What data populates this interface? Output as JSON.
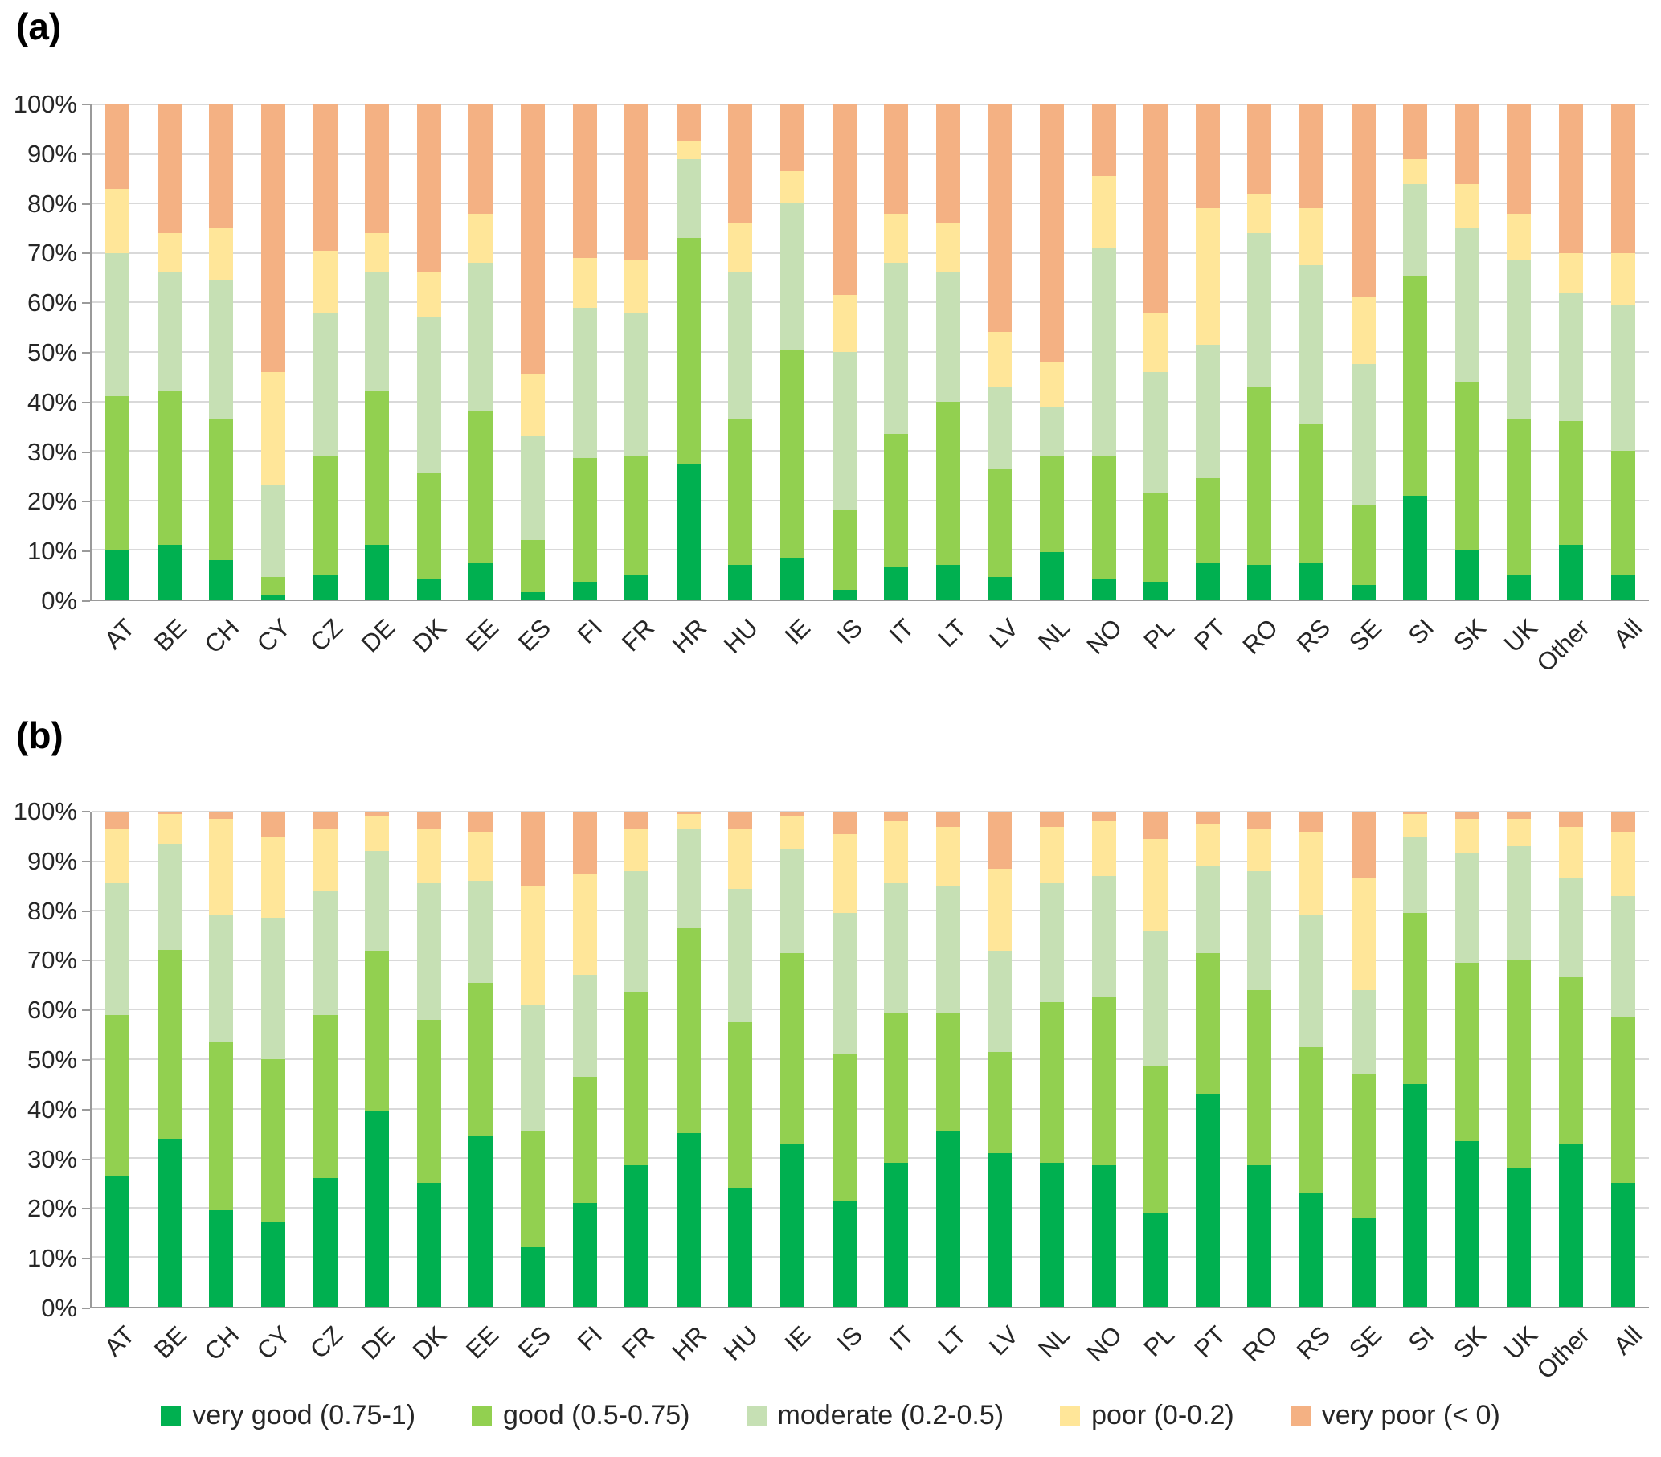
{
  "figure": {
    "panel_a_label": "(a)",
    "panel_b_label": "(b)"
  },
  "chart_data": [
    {
      "type": "bar",
      "stacked": true,
      "panel": "(a)",
      "title": "",
      "xlabel": "",
      "ylabel": "",
      "ylim": [
        0,
        100
      ],
      "grid": true,
      "yticks": [
        "0%",
        "10%",
        "20%",
        "30%",
        "40%",
        "50%",
        "60%",
        "70%",
        "80%",
        "90%",
        "100%"
      ],
      "categories": [
        "AT",
        "BE",
        "CH",
        "CY",
        "CZ",
        "DE",
        "DK",
        "EE",
        "ES",
        "FI",
        "FR",
        "HR",
        "HU",
        "IE",
        "IS",
        "IT",
        "LT",
        "LV",
        "NL",
        "NO",
        "PL",
        "PT",
        "RO",
        "RS",
        "SE",
        "SI",
        "SK",
        "UK",
        "Other",
        "All"
      ],
      "series": [
        {
          "name": "very good (0.75-1)",
          "color": "#00B050",
          "values": [
            10,
            11,
            8,
            1,
            5,
            11,
            4,
            7.5,
            1.5,
            3.5,
            5,
            27.5,
            7,
            8.5,
            2,
            6.5,
            7,
            4.5,
            9.5,
            4,
            3.5,
            7.5,
            7,
            7.5,
            3,
            21,
            10,
            5,
            11,
            5
          ]
        },
        {
          "name": "good (0.5-0.75)",
          "color": "#92D050",
          "values": [
            31,
            31,
            28.5,
            3.5,
            24,
            31,
            21.5,
            30.5,
            10.5,
            25,
            24,
            45.5,
            29.5,
            42,
            16,
            27,
            33,
            22,
            19.5,
            25,
            18,
            17,
            36,
            28,
            16,
            44.5,
            34,
            31.5,
            25,
            25
          ]
        },
        {
          "name": "moderate (0.2-0.5)",
          "color": "#C6E0B4",
          "values": [
            29,
            24,
            28,
            18.5,
            29,
            24,
            31.5,
            30,
            21,
            30.5,
            29,
            16,
            29.5,
            29.5,
            32,
            34.5,
            26,
            16.5,
            10,
            42,
            24.5,
            27,
            31,
            32,
            28.5,
            18.5,
            31,
            32,
            26,
            29.5
          ]
        },
        {
          "name": "poor (0-0.2)",
          "color": "#FFE699",
          "values": [
            13,
            8,
            10.5,
            23,
            12.5,
            8,
            9,
            10,
            12.5,
            10,
            10.5,
            3.5,
            10,
            6.5,
            11.5,
            10,
            10,
            11,
            9,
            14.5,
            12,
            27.5,
            8,
            11.5,
            13.5,
            5,
            9,
            9.5,
            8,
            10.5
          ]
        },
        {
          "name": "very poor (< 0)",
          "color": "#F4B183",
          "values": [
            17,
            26,
            25,
            54,
            29.5,
            26,
            34,
            22,
            54.5,
            31,
            31.5,
            7.5,
            24,
            13.5,
            38.5,
            22,
            24,
            46,
            52,
            14.5,
            42,
            21,
            18,
            21,
            39,
            11,
            16,
            22,
            30,
            30
          ]
        }
      ]
    },
    {
      "type": "bar",
      "stacked": true,
      "panel": "(b)",
      "title": "",
      "xlabel": "",
      "ylabel": "",
      "ylim": [
        0,
        100
      ],
      "grid": true,
      "yticks": [
        "0%",
        "10%",
        "20%",
        "30%",
        "40%",
        "50%",
        "60%",
        "70%",
        "80%",
        "90%",
        "100%"
      ],
      "categories": [
        "AT",
        "BE",
        "CH",
        "CY",
        "CZ",
        "DE",
        "DK",
        "EE",
        "ES",
        "FI",
        "FR",
        "HR",
        "HU",
        "IE",
        "IS",
        "IT",
        "LT",
        "LV",
        "NL",
        "NO",
        "PL",
        "PT",
        "RO",
        "RS",
        "SE",
        "SI",
        "SK",
        "UK",
        "Other",
        "All"
      ],
      "series": [
        {
          "name": "very good (0.75-1)",
          "color": "#00B050",
          "values": [
            26.5,
            34,
            19.5,
            17,
            26,
            39.5,
            25,
            34.5,
            12,
            21,
            28.5,
            35,
            24,
            33,
            21.5,
            29,
            35.5,
            31,
            29,
            28.5,
            19,
            43,
            28.5,
            23,
            18,
            45,
            33.5,
            28,
            33,
            25
          ]
        },
        {
          "name": "good (0.5-0.75)",
          "color": "#92D050",
          "values": [
            32.5,
            38,
            34,
            33,
            33,
            32.5,
            33,
            31,
            23.5,
            25.5,
            35,
            41.5,
            33.5,
            38.5,
            29.5,
            30.5,
            24,
            20.5,
            32.5,
            34,
            29.5,
            28.5,
            35.5,
            29.5,
            29,
            34.5,
            36,
            42,
            33.5,
            33.5
          ]
        },
        {
          "name": "moderate (0.2-0.5)",
          "color": "#C6E0B4",
          "values": [
            26.5,
            21.5,
            25.5,
            28.5,
            25,
            20,
            27.5,
            20.5,
            25.5,
            20.5,
            24.5,
            20,
            27,
            21,
            28.5,
            26,
            25.5,
            20.5,
            24,
            24.5,
            27.5,
            17.5,
            24,
            26.5,
            17,
            15.5,
            22,
            23,
            20,
            24.5
          ]
        },
        {
          "name": "poor (0-0.2)",
          "color": "#FFE699",
          "values": [
            11,
            6,
            19.5,
            16.5,
            12.5,
            7,
            11,
            10,
            24,
            20.5,
            8.5,
            3,
            12,
            6.5,
            16,
            12.5,
            12,
            16.5,
            11.5,
            11,
            18.5,
            8.5,
            8.5,
            17,
            22.5,
            4.5,
            7,
            5.5,
            10.5,
            13
          ]
        },
        {
          "name": "very poor (< 0)",
          "color": "#F4B183",
          "values": [
            3.5,
            0.5,
            1.5,
            5,
            3.5,
            1,
            3.5,
            4,
            15,
            12.5,
            3.5,
            0.5,
            3.5,
            1,
            4.5,
            2,
            3,
            11.5,
            3,
            2,
            5.5,
            2.5,
            3.5,
            4,
            13.5,
            0.5,
            1.5,
            1.5,
            3,
            4
          ]
        }
      ]
    }
  ],
  "legend": {
    "position": "bottom",
    "items": [
      {
        "label": "very good (0.75-1)",
        "color": "#00B050"
      },
      {
        "label": "good (0.5-0.75)",
        "color": "#92D050"
      },
      {
        "label": "moderate (0.2-0.5)",
        "color": "#C6E0B4"
      },
      {
        "label": "poor (0-0.2)",
        "color": "#FFE699"
      },
      {
        "label": "very poor (< 0)",
        "color": "#F4B183"
      }
    ]
  }
}
